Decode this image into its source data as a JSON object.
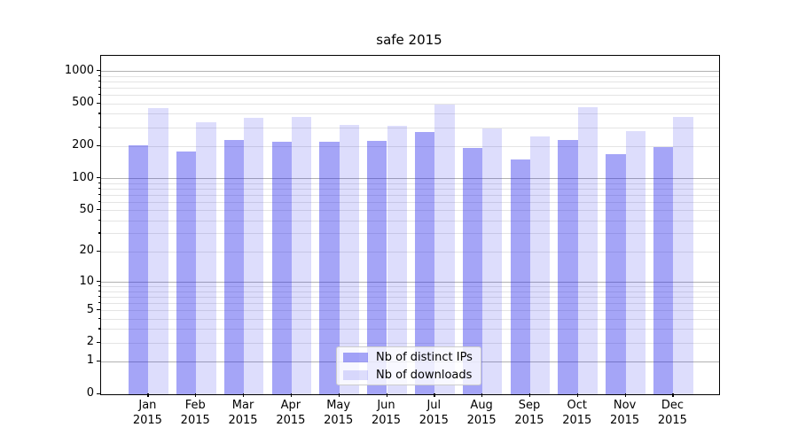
{
  "title": "safe 2015",
  "chart_data": {
    "type": "bar",
    "title": "safe 2015",
    "categories": [
      "Jan",
      "Feb",
      "Mar",
      "Apr",
      "May",
      "Jun",
      "Jul",
      "Aug",
      "Sep",
      "Oct",
      "Nov",
      "Dec"
    ],
    "x_tick_second_line": "2015",
    "series": [
      {
        "name": "Nb of distinct IPs",
        "base_color": "#1e1eeb",
        "alpha": 0.4,
        "values": [
          205,
          181,
          230,
          223,
          222,
          224,
          271,
          195,
          150,
          229,
          170,
          199
        ]
      },
      {
        "name": "Nb of downloads",
        "base_color": "#1e1eeb",
        "alpha": 0.15,
        "values": [
          460,
          338,
          368,
          380,
          318,
          310,
          495,
          295,
          248,
          462,
          280,
          375
        ]
      }
    ],
    "yscale": "log1p",
    "y_tick_values": [
      1000,
      500,
      200,
      100,
      50,
      20,
      10,
      5,
      2,
      1,
      0
    ],
    "y_major_grid_values": [
      1,
      10,
      100,
      1000
    ],
    "y_minor_grid_values": [
      2,
      3,
      4,
      5,
      6,
      7,
      8,
      9,
      20,
      30,
      40,
      50,
      60,
      70,
      80,
      90,
      200,
      300,
      400,
      500,
      600,
      700,
      800,
      900
    ],
    "ylim_top": 1370,
    "grid": true,
    "legend_position": "lower center",
    "colors": {
      "major_grid": "#b2b2b2",
      "minor_grid": "#e4e4e4",
      "axis": "#000000"
    }
  }
}
